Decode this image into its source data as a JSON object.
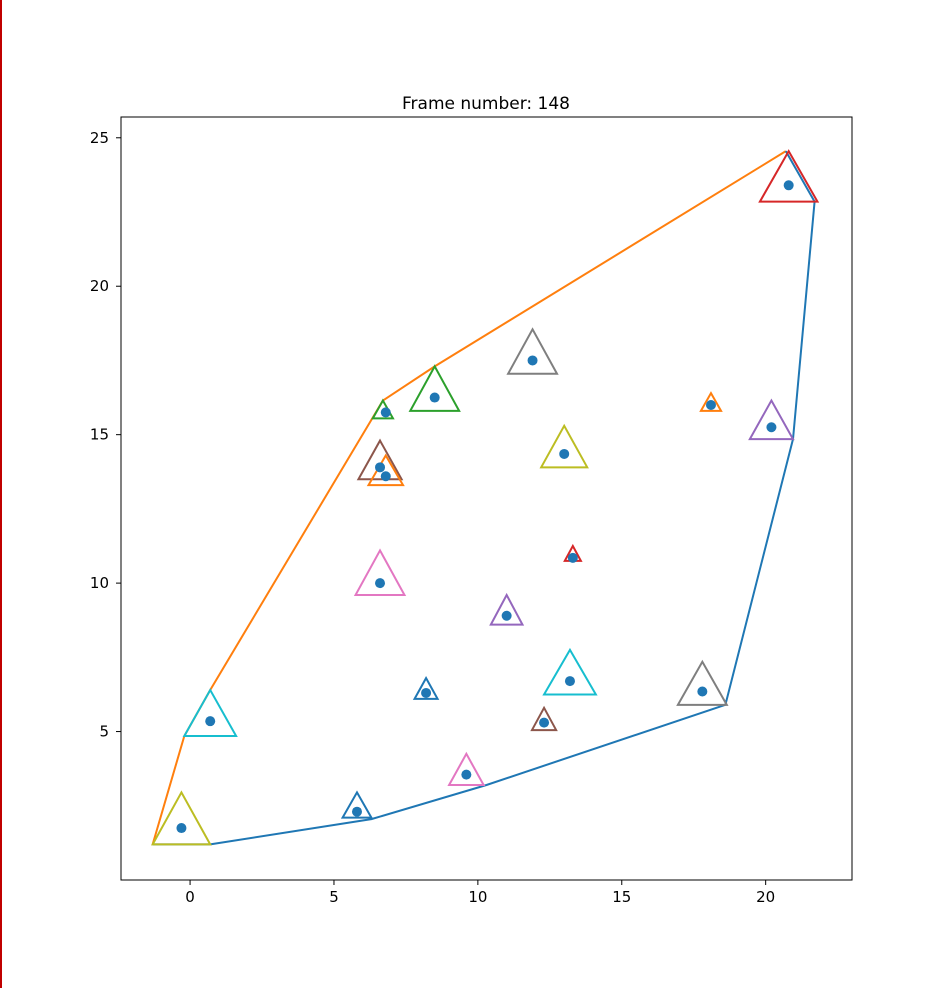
{
  "chart_data": {
    "type": "scatter",
    "title": "Frame number: 148",
    "xlim": [
      -2.4,
      23
    ],
    "ylim": [
      0,
      25.7
    ],
    "xticks": [
      0,
      5,
      10,
      15,
      20
    ],
    "yticks": [
      5,
      10,
      15,
      20,
      25
    ],
    "grid": false,
    "points": [
      {
        "x": -0.3,
        "y": 1.75
      },
      {
        "x": 0.7,
        "y": 5.35
      },
      {
        "x": 5.8,
        "y": 2.3
      },
      {
        "x": 8.2,
        "y": 6.3
      },
      {
        "x": 9.6,
        "y": 3.55
      },
      {
        "x": 6.6,
        "y": 10.0
      },
      {
        "x": 6.8,
        "y": 15.75
      },
      {
        "x": 8.5,
        "y": 16.25
      },
      {
        "x": 6.6,
        "y": 13.9
      },
      {
        "x": 6.8,
        "y": 13.6
      },
      {
        "x": 11.9,
        "y": 17.5
      },
      {
        "x": 13.0,
        "y": 14.35
      },
      {
        "x": 13.3,
        "y": 10.85
      },
      {
        "x": 11.0,
        "y": 8.9
      },
      {
        "x": 12.3,
        "y": 5.3
      },
      {
        "x": 13.2,
        "y": 6.7
      },
      {
        "x": 17.8,
        "y": 6.35
      },
      {
        "x": 18.1,
        "y": 16.0
      },
      {
        "x": 20.2,
        "y": 15.25
      },
      {
        "x": 20.8,
        "y": 23.4
      }
    ],
    "triangles": [
      {
        "cx": -0.3,
        "base_y": 1.2,
        "height": 1.75,
        "half_width": 1.0,
        "color": "#bcbd22"
      },
      {
        "cx": 0.7,
        "base_y": 4.85,
        "height": 1.55,
        "half_width": 0.9,
        "color": "#17becf"
      },
      {
        "cx": 5.8,
        "base_y": 2.1,
        "height": 0.85,
        "half_width": 0.5,
        "color": "#1f77b4"
      },
      {
        "cx": 8.2,
        "base_y": 6.1,
        "height": 0.7,
        "half_width": 0.4,
        "color": "#1f77b4"
      },
      {
        "cx": 9.6,
        "base_y": 3.2,
        "height": 1.05,
        "half_width": 0.6,
        "color": "#e377c2"
      },
      {
        "cx": 6.6,
        "base_y": 9.6,
        "height": 1.5,
        "half_width": 0.85,
        "color": "#e377c2"
      },
      {
        "cx": 6.7,
        "base_y": 15.55,
        "height": 0.6,
        "half_width": 0.35,
        "color": "#2ca02c"
      },
      {
        "cx": 8.5,
        "base_y": 15.8,
        "height": 1.5,
        "half_width": 0.85,
        "color": "#2ca02c"
      },
      {
        "cx": 6.6,
        "base_y": 13.5,
        "height": 1.3,
        "half_width": 0.75,
        "color": "#8c564b"
      },
      {
        "cx": 6.8,
        "base_y": 13.3,
        "height": 1.0,
        "half_width": 0.6,
        "color": "#ff7f0e"
      },
      {
        "cx": 11.9,
        "base_y": 17.05,
        "height": 1.5,
        "half_width": 0.85,
        "color": "#7f7f7f"
      },
      {
        "cx": 13.0,
        "base_y": 13.9,
        "height": 1.4,
        "half_width": 0.8,
        "color": "#bcbd22"
      },
      {
        "cx": 13.3,
        "base_y": 10.75,
        "height": 0.5,
        "half_width": 0.28,
        "color": "#d62728"
      },
      {
        "cx": 11.0,
        "base_y": 8.6,
        "height": 1.0,
        "half_width": 0.55,
        "color": "#9467bd"
      },
      {
        "cx": 12.3,
        "base_y": 5.05,
        "height": 0.75,
        "half_width": 0.42,
        "color": "#8c564b"
      },
      {
        "cx": 13.2,
        "base_y": 6.25,
        "height": 1.5,
        "half_width": 0.9,
        "color": "#17becf"
      },
      {
        "cx": 17.8,
        "base_y": 5.9,
        "height": 1.45,
        "half_width": 0.85,
        "color": "#7f7f7f"
      },
      {
        "cx": 18.1,
        "base_y": 15.8,
        "height": 0.6,
        "half_width": 0.35,
        "color": "#ff7f0e"
      },
      {
        "cx": 20.2,
        "base_y": 14.85,
        "height": 1.3,
        "half_width": 0.75,
        "color": "#9467bd"
      },
      {
        "cx": 20.8,
        "base_y": 22.85,
        "height": 1.7,
        "half_width": 1.0,
        "color": "#d62728"
      }
    ],
    "hull_upper": {
      "color": "#ff7f0e",
      "x": [
        -1.3,
        -0.2,
        0.7,
        6.7,
        8.5,
        20.7
      ],
      "y": [
        1.2,
        4.85,
        6.4,
        16.15,
        17.3,
        24.55
      ]
    },
    "hull_lower": {
      "color": "#1f77b4",
      "x": [
        -1.3,
        0.7,
        6.3,
        10.3,
        18.6,
        20.95,
        21.7,
        20.7
      ],
      "y": [
        1.2,
        1.2,
        2.05,
        3.2,
        5.9,
        14.85,
        22.85,
        24.55
      ]
    },
    "marker_color": "#1f77b4"
  }
}
